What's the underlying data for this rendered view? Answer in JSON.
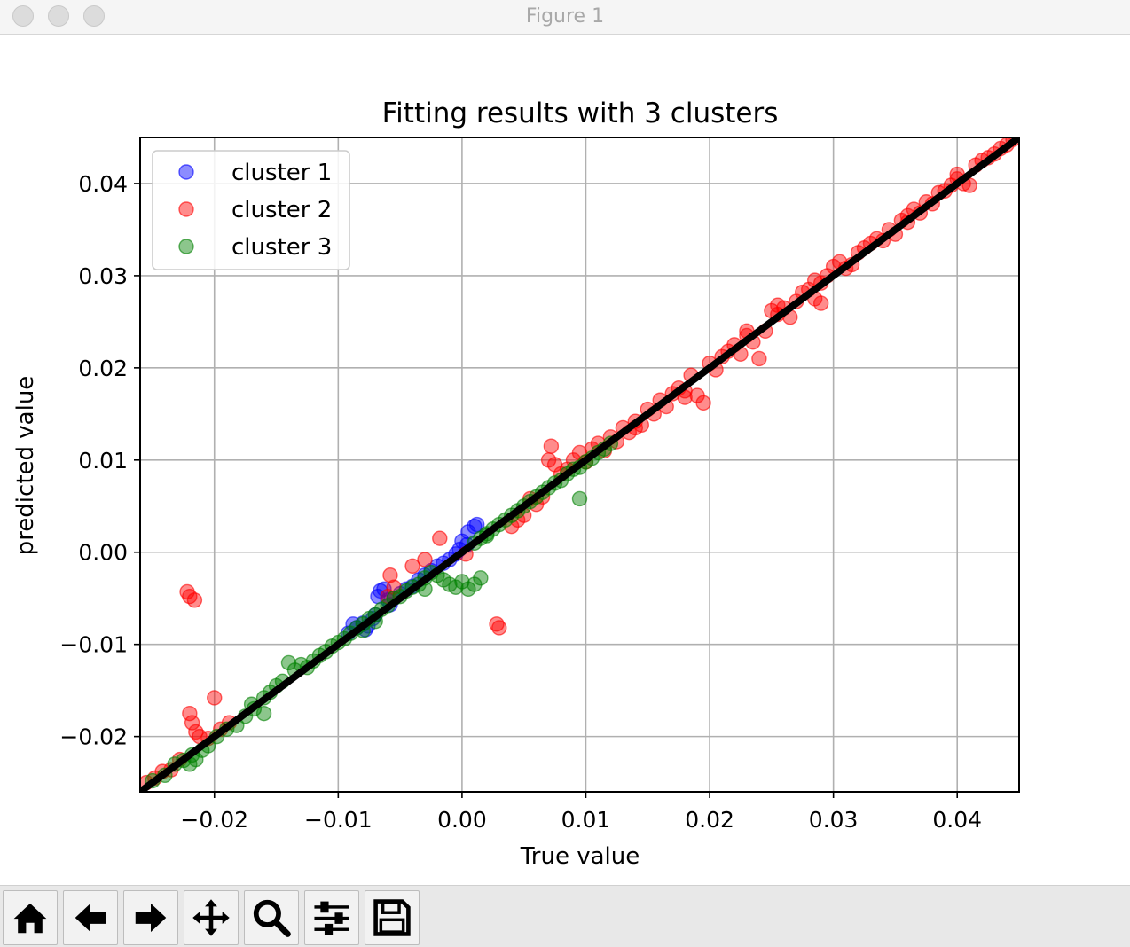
{
  "window": {
    "title": "Figure 1"
  },
  "toolbar": {
    "buttons": [
      {
        "icon": "home-icon"
      },
      {
        "icon": "back-arrow-icon"
      },
      {
        "icon": "forward-arrow-icon"
      },
      {
        "icon": "pan-icon"
      },
      {
        "icon": "zoom-icon"
      },
      {
        "icon": "configure-subplots-icon"
      },
      {
        "icon": "save-icon"
      }
    ]
  },
  "chart_data": {
    "type": "scatter",
    "title": "Fitting results with 3 clusters",
    "xlabel": "True value",
    "ylabel": "predicted value",
    "xlim": [
      -0.026,
      0.045
    ],
    "ylim": [
      -0.026,
      0.045
    ],
    "xticks": [
      -0.02,
      -0.01,
      0.0,
      0.01,
      0.02,
      0.03,
      0.04
    ],
    "yticks": [
      -0.02,
      -0.01,
      0.0,
      0.01,
      0.02,
      0.03,
      0.04
    ],
    "xtick_labels": [
      "−0.02",
      "−0.01",
      "0.00",
      "0.01",
      "0.02",
      "0.03",
      "0.04"
    ],
    "ytick_labels": [
      "−0.02",
      "−0.01",
      "0.00",
      "0.01",
      "0.02",
      "0.03",
      "0.04"
    ],
    "grid": true,
    "legend_position": "top-left",
    "reference_line": {
      "x": [
        -0.026,
        0.045
      ],
      "y": [
        -0.026,
        0.045
      ],
      "color": "#000000"
    },
    "series": [
      {
        "name": "cluster 1",
        "color": "#0000ff",
        "points": [
          [
            -0.0088,
            -0.0078
          ],
          [
            -0.0085,
            -0.0082
          ],
          [
            -0.008,
            -0.0077
          ],
          [
            -0.0076,
            -0.008
          ],
          [
            -0.0072,
            -0.0072
          ],
          [
            -0.007,
            -0.0068
          ],
          [
            -0.0068,
            -0.0048
          ],
          [
            -0.0066,
            -0.0042
          ],
          [
            -0.0063,
            -0.004
          ],
          [
            -0.006,
            -0.0052
          ],
          [
            -0.0058,
            -0.0057
          ],
          [
            -0.0055,
            -0.005
          ],
          [
            -0.005,
            -0.0045
          ],
          [
            -0.0045,
            -0.004
          ],
          [
            -0.004,
            -0.0037
          ],
          [
            -0.0035,
            -0.003
          ],
          [
            -0.003,
            -0.0025
          ],
          [
            -0.0025,
            -0.002
          ],
          [
            -0.002,
            -0.0015
          ],
          [
            -0.0015,
            -0.0012
          ],
          [
            -0.001,
            -0.0008
          ],
          [
            -0.0005,
            -0.0002
          ],
          [
            0.0,
            0.0012
          ],
          [
            0.0005,
            0.0022
          ],
          [
            0.001,
            0.0028
          ],
          [
            0.0012,
            0.003
          ],
          [
            -0.0092,
            -0.0088
          ],
          [
            -0.0078,
            -0.0084
          ],
          [
            0.0004,
            0.0008
          ],
          [
            -0.0002,
            0.0003
          ]
        ]
      },
      {
        "name": "cluster 2",
        "color": "#ff0000",
        "points": [
          [
            -0.0255,
            -0.025
          ],
          [
            -0.0248,
            -0.0245
          ],
          [
            -0.0242,
            -0.0238
          ],
          [
            -0.0235,
            -0.0236
          ],
          [
            -0.0228,
            -0.0225
          ],
          [
            -0.0222,
            -0.0043
          ],
          [
            -0.022,
            -0.0048
          ],
          [
            -0.0216,
            -0.0052
          ],
          [
            -0.022,
            -0.0175
          ],
          [
            -0.0218,
            -0.0185
          ],
          [
            -0.0215,
            -0.0195
          ],
          [
            -0.0212,
            -0.02
          ],
          [
            -0.0205,
            -0.0202
          ],
          [
            -0.02,
            -0.0158
          ],
          [
            -0.0195,
            -0.0192
          ],
          [
            -0.0188,
            -0.0185
          ],
          [
            -0.006,
            -0.0048
          ],
          [
            -0.0055,
            -0.0038
          ],
          [
            -0.0058,
            -0.0025
          ],
          [
            -0.004,
            -0.0015
          ],
          [
            -0.003,
            -0.0008
          ],
          [
            -0.0018,
            0.0015
          ],
          [
            0.0003,
            -0.0002
          ],
          [
            0.0028,
            -0.0078
          ],
          [
            0.003,
            -0.0082
          ],
          [
            0.004,
            0.0028
          ],
          [
            0.0045,
            0.0035
          ],
          [
            0.005,
            0.004
          ],
          [
            0.0055,
            0.0058
          ],
          [
            0.006,
            0.0052
          ],
          [
            0.0065,
            0.006
          ],
          [
            0.007,
            0.01
          ],
          [
            0.0072,
            0.0115
          ],
          [
            0.0075,
            0.0095
          ],
          [
            0.008,
            0.0085
          ],
          [
            0.0085,
            0.009
          ],
          [
            0.009,
            0.01
          ],
          [
            0.0095,
            0.0108
          ],
          [
            0.01,
            0.0098
          ],
          [
            0.0105,
            0.0112
          ],
          [
            0.011,
            0.0118
          ],
          [
            0.0115,
            0.011
          ],
          [
            0.012,
            0.0125
          ],
          [
            0.0125,
            0.012
          ],
          [
            0.013,
            0.0135
          ],
          [
            0.0135,
            0.013
          ],
          [
            0.014,
            0.0142
          ],
          [
            0.0145,
            0.0138
          ],
          [
            0.015,
            0.0155
          ],
          [
            0.0155,
            0.015
          ],
          [
            0.016,
            0.0165
          ],
          [
            0.0165,
            0.0158
          ],
          [
            0.017,
            0.0172
          ],
          [
            0.0175,
            0.0178
          ],
          [
            0.018,
            0.0175
          ],
          [
            0.0185,
            0.0192
          ],
          [
            0.019,
            0.017
          ],
          [
            0.0195,
            0.0162
          ],
          [
            0.02,
            0.0205
          ],
          [
            0.0205,
            0.0198
          ],
          [
            0.021,
            0.0212
          ],
          [
            0.0215,
            0.0218
          ],
          [
            0.022,
            0.0225
          ],
          [
            0.0225,
            0.0215
          ],
          [
            0.023,
            0.0235
          ],
          [
            0.0235,
            0.0228
          ],
          [
            0.024,
            0.021
          ],
          [
            0.0245,
            0.024
          ],
          [
            0.025,
            0.0262
          ],
          [
            0.0255,
            0.0258
          ],
          [
            0.026,
            0.0265
          ],
          [
            0.0265,
            0.0255
          ],
          [
            0.027,
            0.0272
          ],
          [
            0.0275,
            0.0282
          ],
          [
            0.028,
            0.0285
          ],
          [
            0.0285,
            0.0275
          ],
          [
            0.029,
            0.0292
          ],
          [
            0.0295,
            0.03
          ],
          [
            0.03,
            0.031
          ],
          [
            0.0305,
            0.0315
          ],
          [
            0.031,
            0.0308
          ],
          [
            0.0315,
            0.0312
          ],
          [
            0.032,
            0.0325
          ],
          [
            0.0325,
            0.033
          ],
          [
            0.033,
            0.0335
          ],
          [
            0.0335,
            0.034
          ],
          [
            0.034,
            0.0338
          ],
          [
            0.0345,
            0.035
          ],
          [
            0.035,
            0.0345
          ],
          [
            0.0355,
            0.036
          ],
          [
            0.036,
            0.0358
          ],
          [
            0.0365,
            0.0372
          ],
          [
            0.037,
            0.0368
          ],
          [
            0.0375,
            0.038
          ],
          [
            0.038,
            0.0378
          ],
          [
            0.0385,
            0.039
          ],
          [
            0.039,
            0.0392
          ],
          [
            0.0395,
            0.0398
          ],
          [
            0.04,
            0.0405
          ],
          [
            0.0405,
            0.04
          ],
          [
            0.041,
            0.0398
          ],
          [
            0.0415,
            0.042
          ],
          [
            0.042,
            0.0425
          ],
          [
            0.0425,
            0.0428
          ],
          [
            0.043,
            0.0432
          ],
          [
            0.0435,
            0.0438
          ],
          [
            0.044,
            0.0442
          ],
          [
            0.0445,
            0.0448
          ],
          [
            0.0285,
            0.0295
          ],
          [
            0.029,
            0.027
          ],
          [
            0.023,
            0.024
          ],
          [
            0.018,
            0.0168
          ],
          [
            0.014,
            0.0135
          ],
          [
            0.04,
            0.041
          ],
          [
            0.036,
            0.0365
          ],
          [
            0.0255,
            0.0268
          ]
        ]
      },
      {
        "name": "cluster 3",
        "color": "#008000",
        "points": [
          [
            -0.025,
            -0.0248
          ],
          [
            -0.024,
            -0.0242
          ],
          [
            -0.0232,
            -0.023
          ],
          [
            -0.0225,
            -0.0226
          ],
          [
            -0.0218,
            -0.022
          ],
          [
            -0.021,
            -0.0215
          ],
          [
            -0.0205,
            -0.021
          ],
          [
            -0.0198,
            -0.02
          ],
          [
            -0.019,
            -0.0192
          ],
          [
            -0.0182,
            -0.0188
          ],
          [
            -0.0175,
            -0.0178
          ],
          [
            -0.0168,
            -0.017
          ],
          [
            -0.016,
            -0.0158
          ],
          [
            -0.0155,
            -0.0152
          ],
          [
            -0.015,
            -0.0145
          ],
          [
            -0.0145,
            -0.014
          ],
          [
            -0.014,
            -0.012
          ],
          [
            -0.0135,
            -0.0128
          ],
          [
            -0.013,
            -0.0122
          ],
          [
            -0.0125,
            -0.0125
          ],
          [
            -0.012,
            -0.0118
          ],
          [
            -0.0115,
            -0.0112
          ],
          [
            -0.011,
            -0.0108
          ],
          [
            -0.0105,
            -0.0102
          ],
          [
            -0.01,
            -0.0098
          ],
          [
            -0.0095,
            -0.0094
          ],
          [
            -0.009,
            -0.0088
          ],
          [
            -0.0085,
            -0.0082
          ],
          [
            -0.008,
            -0.0078
          ],
          [
            -0.0075,
            -0.0072
          ],
          [
            -0.007,
            -0.0068
          ],
          [
            -0.0065,
            -0.0062
          ],
          [
            -0.006,
            -0.0058
          ],
          [
            -0.0055,
            -0.005
          ],
          [
            -0.005,
            -0.0048
          ],
          [
            -0.0045,
            -0.0042
          ],
          [
            -0.004,
            -0.0038
          ],
          [
            -0.0035,
            -0.0035
          ],
          [
            -0.003,
            -0.0028
          ],
          [
            -0.0025,
            -0.0022
          ],
          [
            -0.002,
            -0.0025
          ],
          [
            -0.0015,
            -0.003
          ],
          [
            -0.001,
            -0.0035
          ],
          [
            -0.0005,
            -0.0038
          ],
          [
            0.0,
            -0.0032
          ],
          [
            0.0005,
            -0.004
          ],
          [
            0.001,
            -0.0035
          ],
          [
            0.0015,
            -0.0028
          ],
          [
            0.001,
            0.001
          ],
          [
            0.0015,
            0.0015
          ],
          [
            0.002,
            0.002
          ],
          [
            0.0025,
            0.0025
          ],
          [
            0.003,
            0.003
          ],
          [
            0.0035,
            0.0035
          ],
          [
            0.004,
            0.004
          ],
          [
            0.0045,
            0.0045
          ],
          [
            0.005,
            0.005
          ],
          [
            0.0055,
            0.0055
          ],
          [
            0.006,
            0.006
          ],
          [
            0.0065,
            0.0065
          ],
          [
            0.007,
            0.007
          ],
          [
            0.0075,
            0.0075
          ],
          [
            0.008,
            0.0078
          ],
          [
            0.0085,
            0.0085
          ],
          [
            0.009,
            0.009
          ],
          [
            0.0095,
            0.0092
          ],
          [
            0.01,
            0.0098
          ],
          [
            0.0105,
            0.0102
          ],
          [
            0.011,
            0.0108
          ],
          [
            0.0115,
            0.0112
          ],
          [
            0.012,
            0.0118
          ],
          [
            0.0095,
            0.0058
          ],
          [
            -0.022,
            -0.023
          ],
          [
            -0.0215,
            -0.0225
          ],
          [
            -0.017,
            -0.0165
          ],
          [
            -0.016,
            -0.0175
          ],
          [
            -0.008,
            -0.0085
          ],
          [
            -0.007,
            -0.0075
          ],
          [
            -0.003,
            -0.004
          ],
          [
            0.002,
            0.0018
          ]
        ]
      }
    ]
  }
}
